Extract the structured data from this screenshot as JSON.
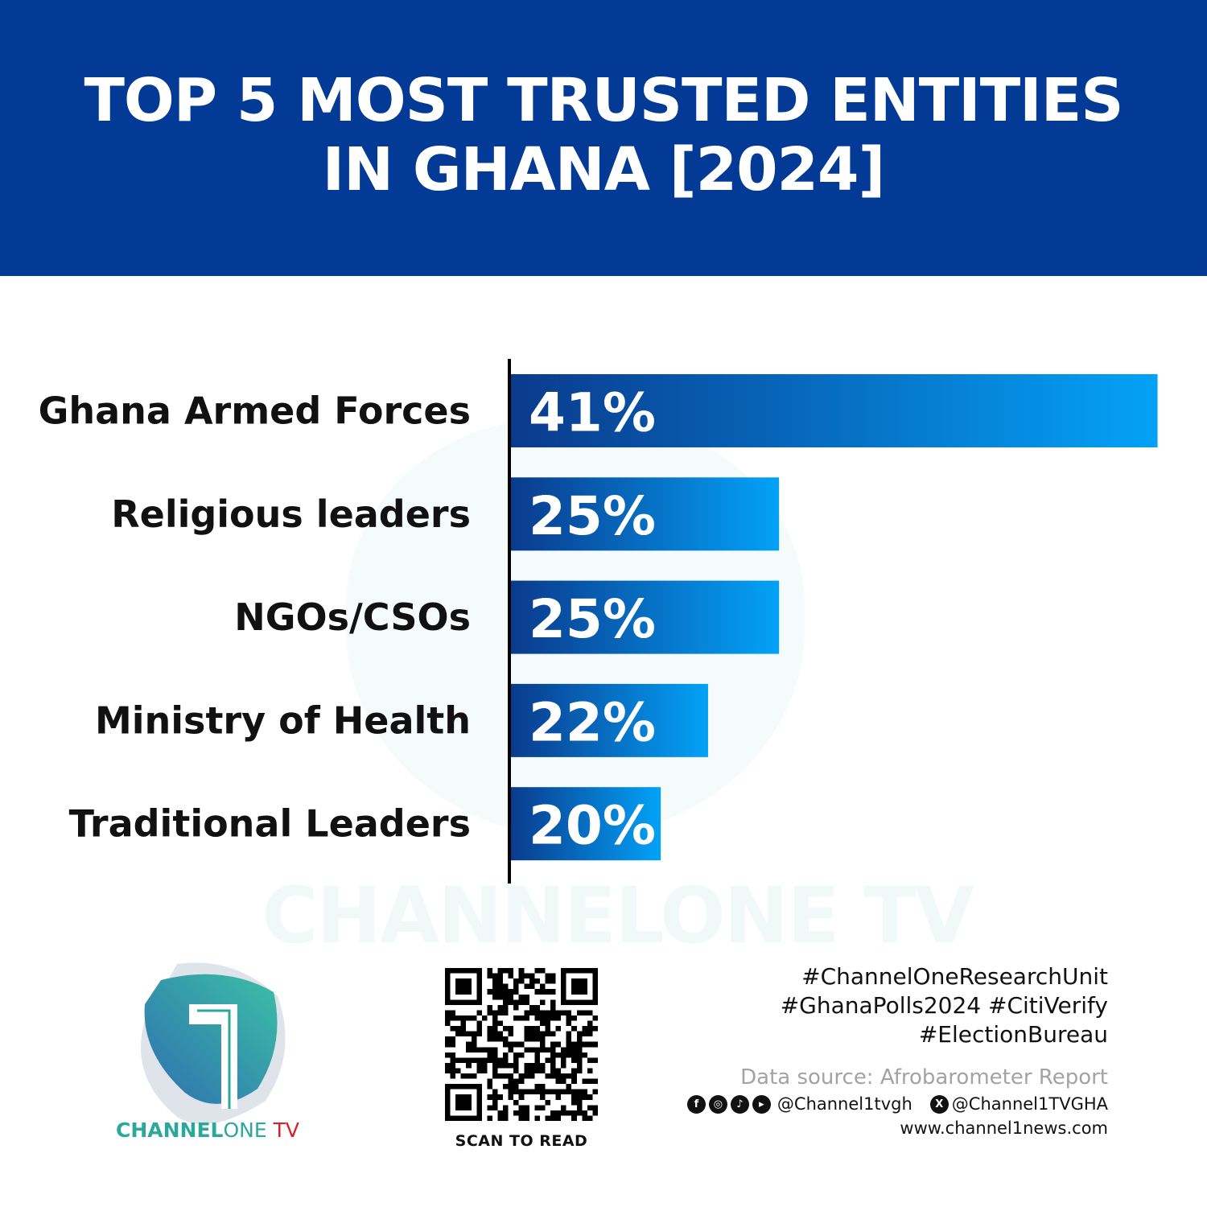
{
  "header": {
    "title_line1": "TOP 5 MOST TRUSTED ENTITIES",
    "title_line2": "IN GHANA [2024]"
  },
  "chart_data": {
    "type": "bar",
    "orientation": "horizontal",
    "title": "TOP 5 MOST TRUSTED ENTITIES IN GHANA [2024]",
    "categories": [
      "Ghana Armed Forces",
      "Religious leaders",
      "NGOs/CSOs",
      "Ministry of Health",
      "Traditional Leaders"
    ],
    "values": [
      41,
      25,
      25,
      22,
      20
    ],
    "value_labels": [
      "41%",
      "25%",
      "25%",
      "22%",
      "20%"
    ],
    "unit": "%",
    "grid": false,
    "bar_gradient": [
      "#0a3a8c",
      "#03a2f7"
    ]
  },
  "watermark": "CHANNELONE TV",
  "logo": {
    "text_bold": "CHANNEL",
    "text_light": "ONE",
    "text_tv": "TV",
    "colors": {
      "teal": "#2aa89a",
      "blue": "#2f6fb0",
      "red": "#d2232a"
    }
  },
  "qr": {
    "caption": "SCAN TO READ"
  },
  "footer": {
    "hashtags": [
      "#ChannelOneResearchUnit",
      "#GhanaPolls2024 #CitiVerify",
      "#ElectionBureau"
    ],
    "source": "Data source: Afrobarometer Report",
    "social_icons": [
      "facebook-icon",
      "instagram-icon",
      "tiktok-icon",
      "youtube-icon"
    ],
    "handle1": "@Channel1tvgh",
    "x_icon": "x-icon",
    "handle2": "@Channel1TVGHA",
    "website": "www.channel1news.com"
  },
  "colors": {
    "header_bg": "#033a96"
  }
}
